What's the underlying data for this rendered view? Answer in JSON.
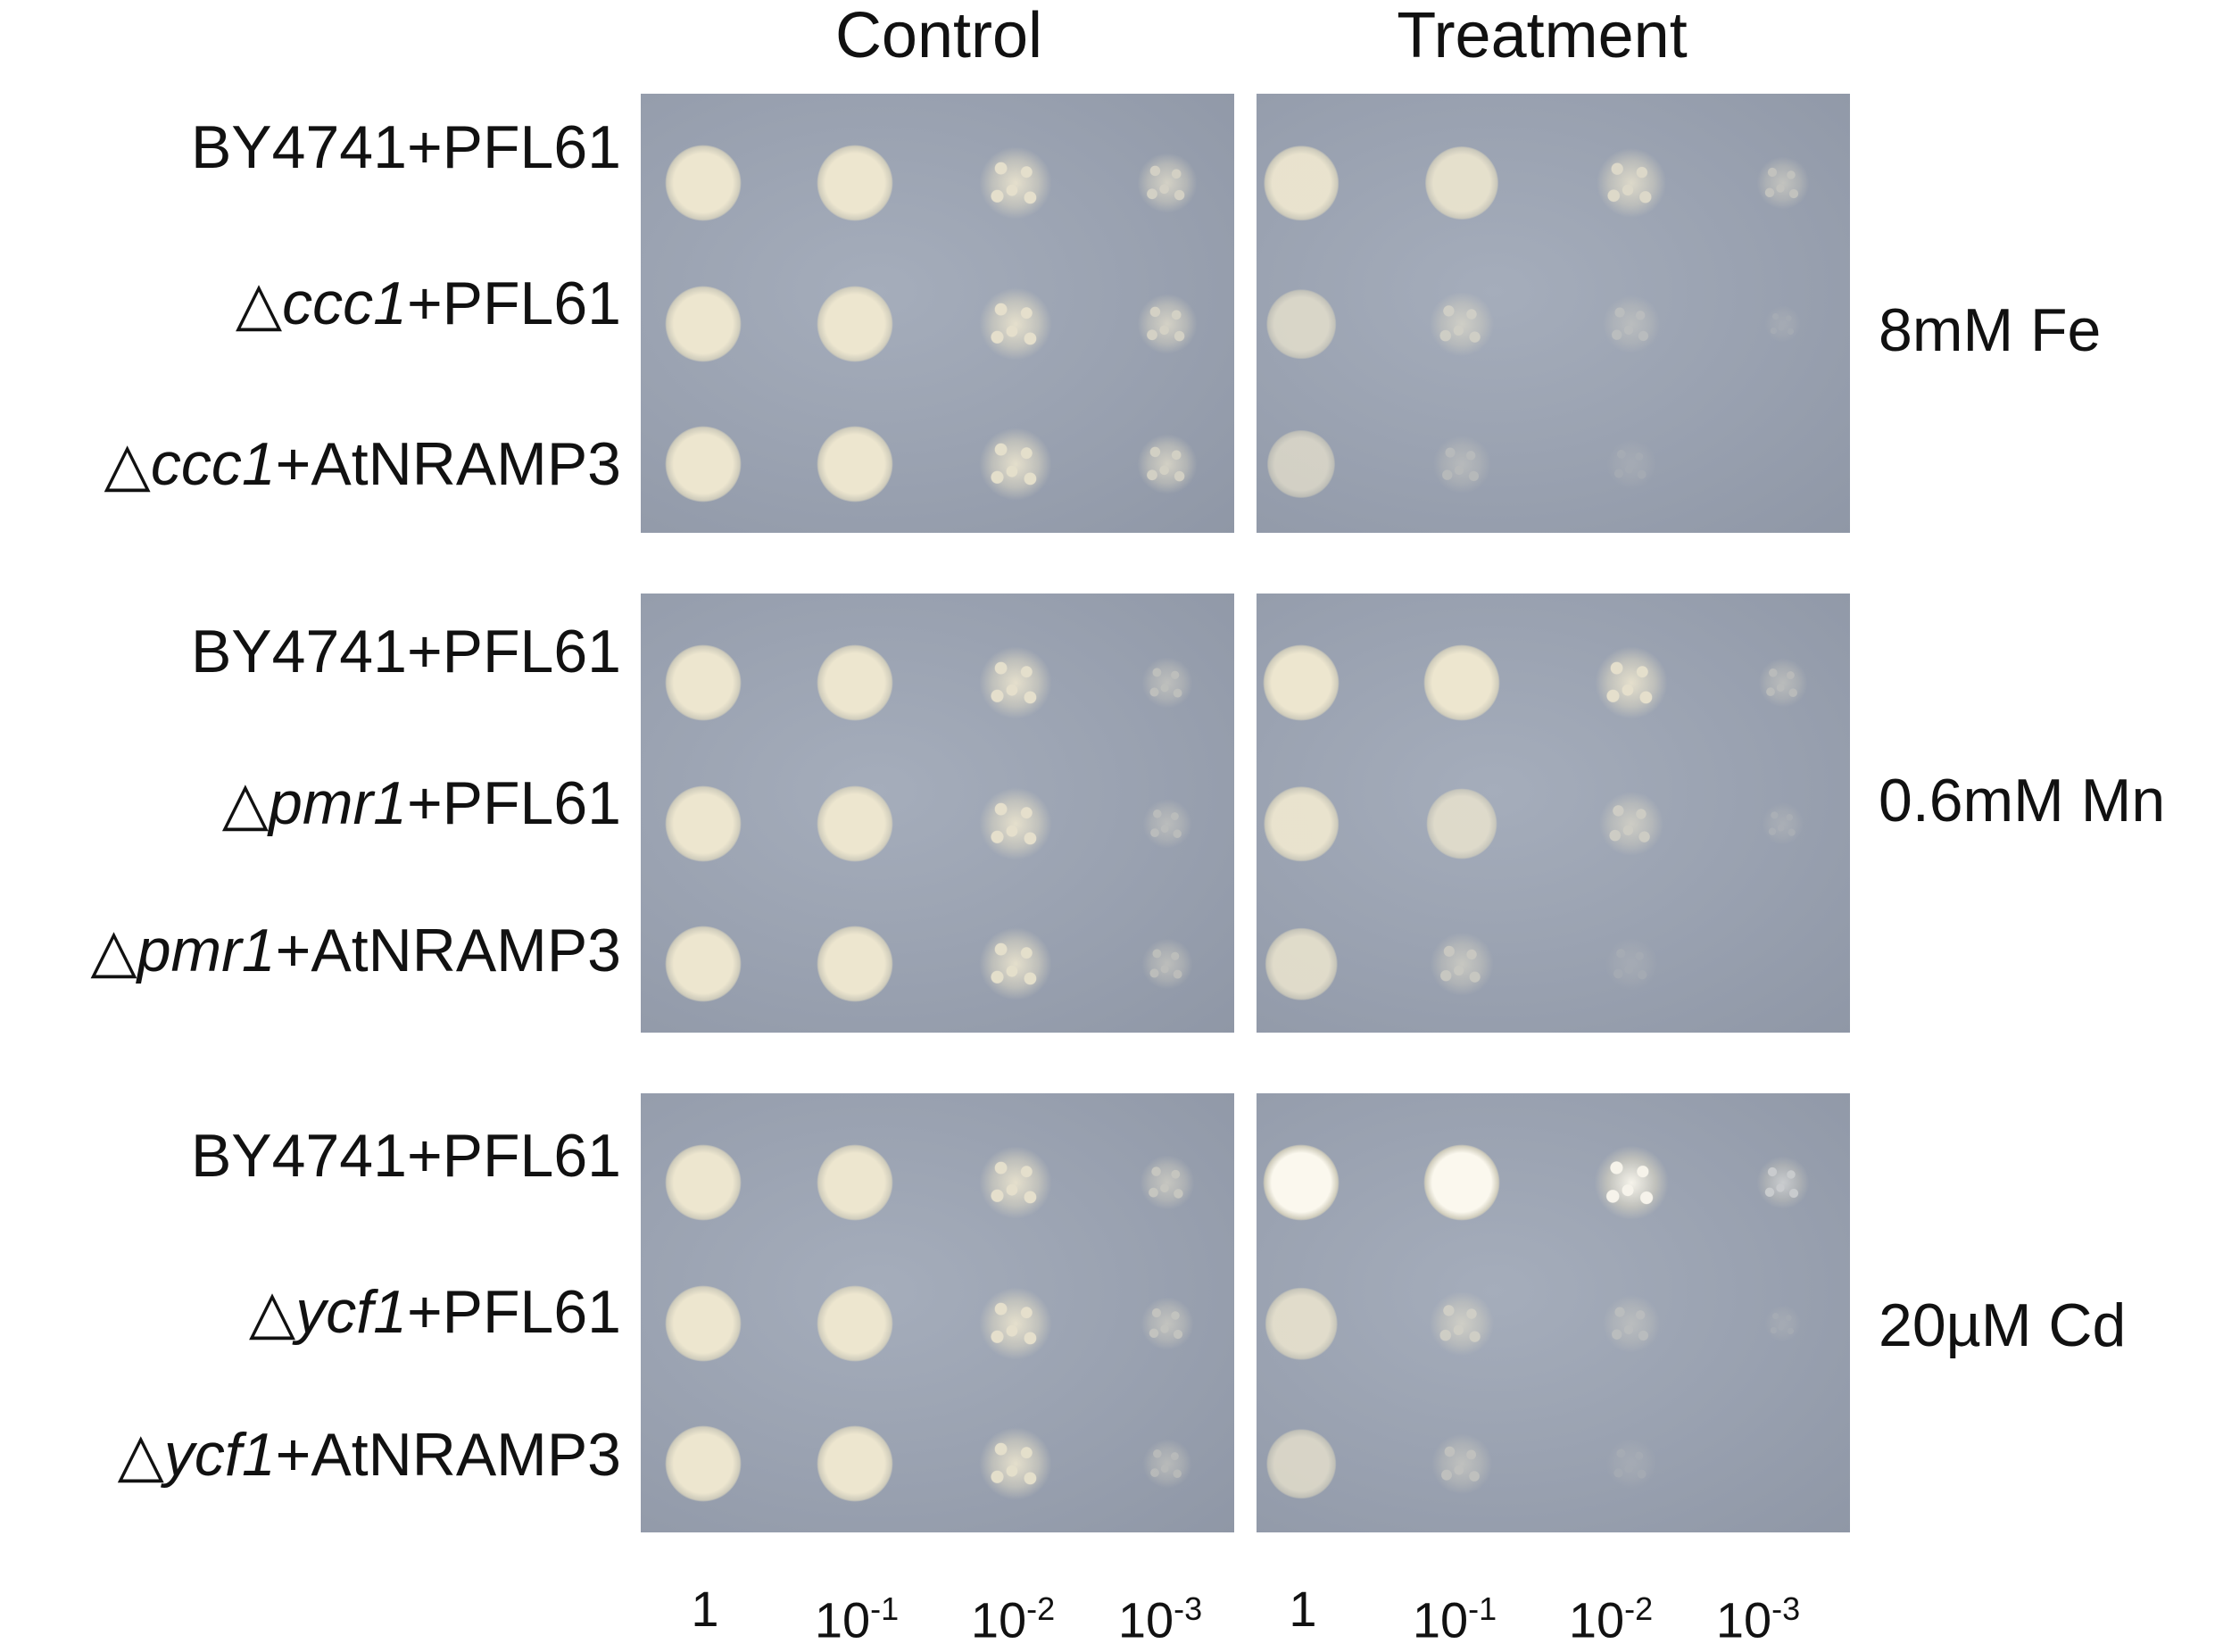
{
  "column_headers": [
    "Control",
    "Treatment"
  ],
  "groups": [
    {
      "condition": "8mM Fe",
      "rows": [
        {
          "prefix": "",
          "gene": "BY4741",
          "gene_italic": false,
          "suffix": "+PFL61"
        },
        {
          "prefix": "△",
          "gene": "ccc1",
          "gene_italic": true,
          "suffix": "+PFL61"
        },
        {
          "prefix": "△",
          "gene": "ccc1",
          "gene_italic": true,
          "suffix": "+AtNRAMP3"
        }
      ]
    },
    {
      "condition": "0.6mM Mn",
      "rows": [
        {
          "prefix": "",
          "gene": "BY4741",
          "gene_italic": false,
          "suffix": "+PFL61"
        },
        {
          "prefix": "△",
          "gene": "pmr1",
          "gene_italic": true,
          "suffix": "+PFL61"
        },
        {
          "prefix": "△",
          "gene": "pmr1",
          "gene_italic": true,
          "suffix": "+AtNRAMP3"
        }
      ]
    },
    {
      "condition": "20µM Cd",
      "rows": [
        {
          "prefix": "",
          "gene": "BY4741",
          "gene_italic": false,
          "suffix": "+PFL61"
        },
        {
          "prefix": "△",
          "gene": "ycf1",
          "gene_italic": true,
          "suffix": "+PFL61"
        },
        {
          "prefix": "△",
          "gene": "ycf1",
          "gene_italic": true,
          "suffix": "+AtNRAMP3"
        }
      ]
    }
  ],
  "dilutions": [
    {
      "base": "1",
      "exp": ""
    },
    {
      "base": "10",
      "exp": "-1"
    },
    {
      "base": "10",
      "exp": "-2"
    },
    {
      "base": "10",
      "exp": "-3"
    },
    {
      "base": "1",
      "exp": ""
    },
    {
      "base": "10",
      "exp": "-1"
    },
    {
      "base": "10",
      "exp": "-2"
    },
    {
      "base": "10",
      "exp": "-3"
    }
  ],
  "growth": {
    "description_note": "",
    "control": [
      [
        1.0,
        1.0,
        0.9,
        0.7
      ],
      [
        1.0,
        1.0,
        0.9,
        0.7
      ],
      [
        1.0,
        1.0,
        0.9,
        0.7
      ],
      [
        1.0,
        1.0,
        0.9,
        0.45
      ],
      [
        1.0,
        1.0,
        0.9,
        0.4
      ],
      [
        1.0,
        1.0,
        0.9,
        0.45
      ],
      [
        1.0,
        1.0,
        0.9,
        0.55
      ],
      [
        1.0,
        1.0,
        0.9,
        0.5
      ],
      [
        1.0,
        1.0,
        0.9,
        0.4
      ]
    ],
    "treatment": [
      [
        0.95,
        0.9,
        0.8,
        0.5
      ],
      [
        0.75,
        0.6,
        0.35,
        0.05
      ],
      [
        0.7,
        0.35,
        0.05,
        0.0
      ],
      [
        1.0,
        1.0,
        0.9,
        0.4
      ],
      [
        0.95,
        0.8,
        0.6,
        0.2
      ],
      [
        0.85,
        0.55,
        0.15,
        0.0
      ],
      [
        1.0,
        1.0,
        0.95,
        0.5
      ],
      [
        0.85,
        0.6,
        0.35,
        0.05
      ],
      [
        0.75,
        0.45,
        0.1,
        0.0
      ]
    ]
  },
  "colors": {
    "plate": "#98a0af",
    "colony": "#ede6cf",
    "colony_bright": "#fbf8ee"
  }
}
